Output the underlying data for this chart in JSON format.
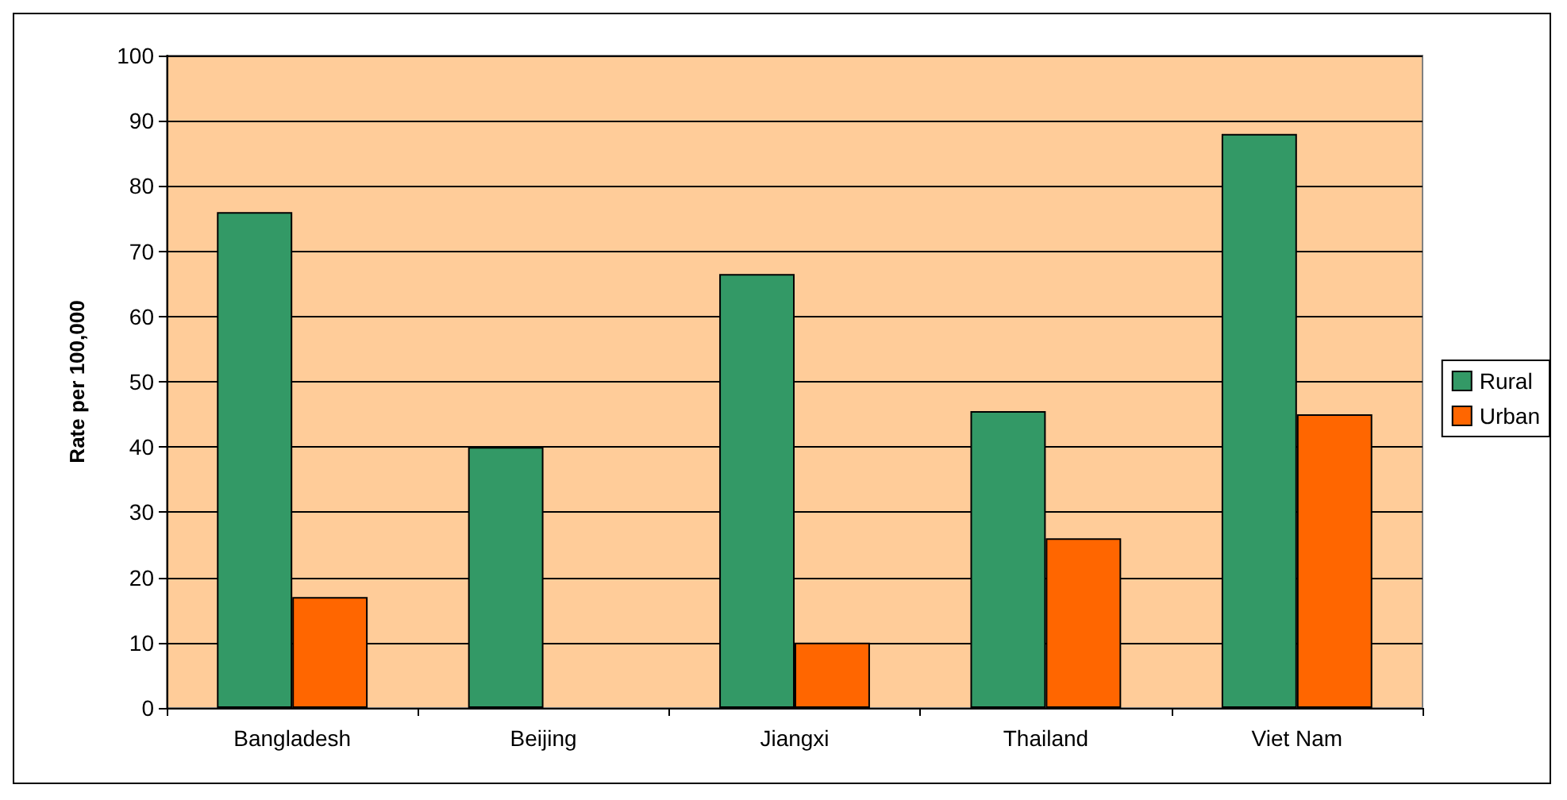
{
  "chart_data": {
    "type": "bar",
    "ylabel": "Rate per 100,000",
    "categories": [
      "Bangladesh",
      "Beijing",
      "Jiangxi",
      "Thailand",
      "Viet Nam"
    ],
    "series": [
      {
        "name": "Rural",
        "color": "#339966",
        "values": [
          76,
          40,
          66.5,
          45.5,
          88
        ]
      },
      {
        "name": "Urban",
        "color": "#ff6600",
        "values": [
          17,
          null,
          10,
          26,
          45
        ]
      }
    ],
    "ylim": [
      0,
      100
    ],
    "yticks": [
      0,
      10,
      20,
      30,
      40,
      50,
      60,
      70,
      80,
      90,
      100
    ],
    "grid": "y",
    "legend": "right"
  }
}
